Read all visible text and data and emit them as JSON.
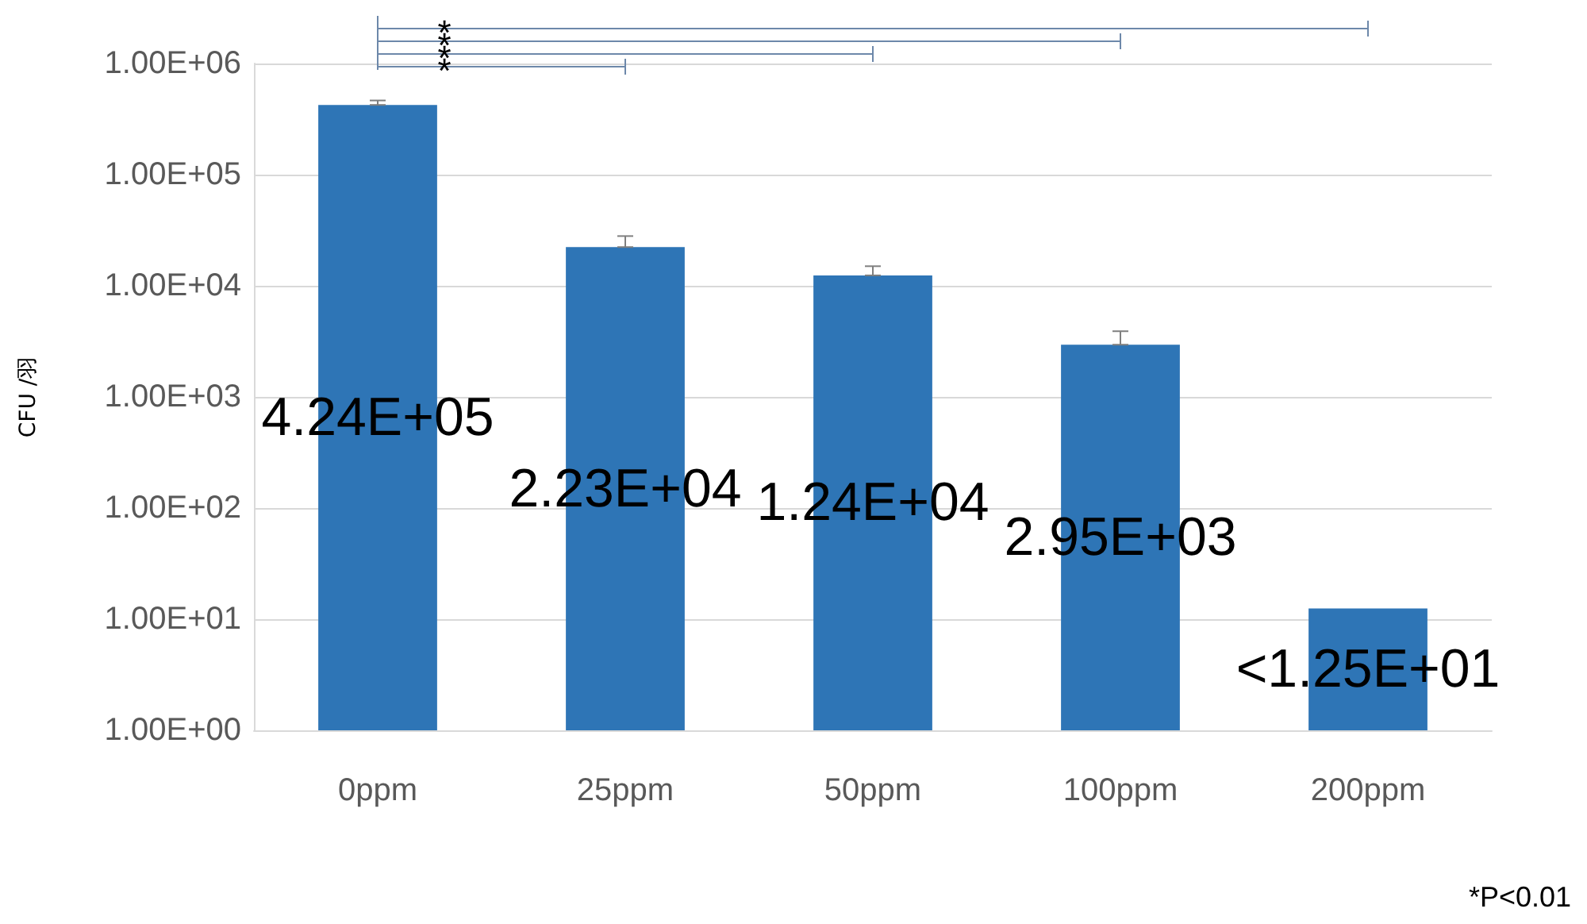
{
  "chart_data": {
    "type": "bar",
    "ylabel": "CFU /羽",
    "categories": [
      "0ppm",
      "25ppm",
      "50ppm",
      "100ppm",
      "200ppm"
    ],
    "values": [
      424000,
      22300,
      12400,
      2950,
      12.5
    ],
    "value_labels": [
      "4.24E+05",
      "2.23E+04",
      "1.24E+04",
      "2.95E+03",
      "<1.25E+01"
    ],
    "errors": [
      [
        424000,
        465000
      ],
      [
        22300,
        28000
      ],
      [
        12400,
        15000
      ],
      [
        2950,
        3900
      ],
      null
    ],
    "color": "#2e75b6",
    "log": true,
    "ylim": [
      1,
      1000000
    ],
    "yticks": [
      {
        "value": 1,
        "label": "1.00E+00"
      },
      {
        "value": 10,
        "label": "1.00E+01"
      },
      {
        "value": 100,
        "label": "1.00E+02"
      },
      {
        "value": 1000,
        "label": "1.00E+03"
      },
      {
        "value": 10000,
        "label": "1.00E+04"
      },
      {
        "value": 100000,
        "label": "1.00E+05"
      },
      {
        "value": 1000000,
        "label": "1.00E+06"
      }
    ],
    "grid": "y",
    "annotations": [
      "*",
      "*",
      "*",
      "*",
      "*P<0.01"
    ]
  }
}
